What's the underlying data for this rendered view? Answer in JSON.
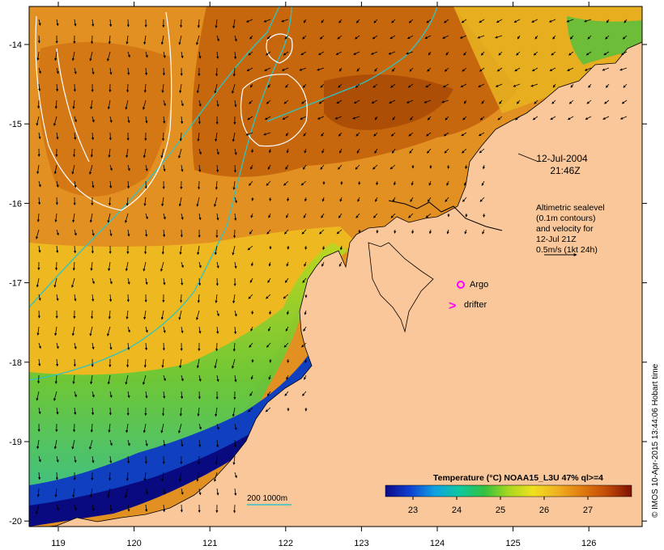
{
  "map": {
    "lon_ticks": [
      "119",
      "120",
      "121",
      "122",
      "123",
      "124",
      "125",
      "126"
    ],
    "lat_ticks": [
      "-14",
      "-15",
      "-16",
      "-17",
      "-18",
      "-19",
      "-20"
    ],
    "date": "12-Jul-2004",
    "time": "21:46Z",
    "legend_lines": [
      "Altimetric sealevel",
      "(0.1m contours)",
      "and velocity for",
      "12-Jul 21Z",
      "0.5m/s (1kt 24h)"
    ],
    "argo_label": "Argo",
    "drifter_label": "drifter",
    "drifter_symbol": ">",
    "isobath_label": "200  1000m",
    "colorbar": {
      "title": "Temperature (°C) NOAA15_L3U 47% ql>=4",
      "ticks": [
        "23",
        "24",
        "25",
        "26",
        "27"
      ]
    },
    "credit": "© IMOS 10-Apr-2015 13:44:06 Hobart time"
  },
  "colors": {
    "land": "#f9c79a",
    "isobath": "#2ec4c4",
    "marker": "#ff00ff",
    "contour": "#ffffff"
  }
}
